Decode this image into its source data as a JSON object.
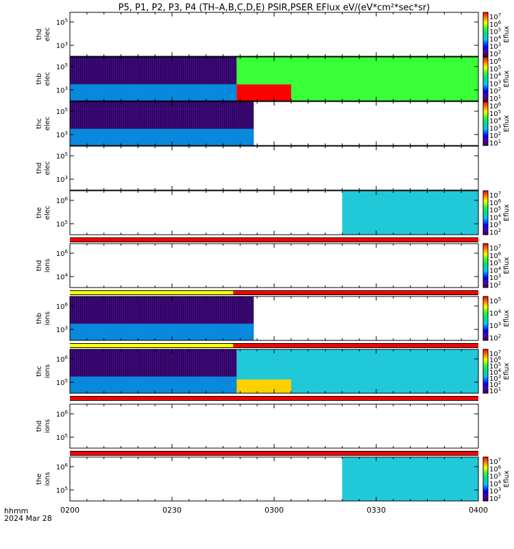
{
  "title": "P5, P1, P2, P3, P4 (TH–A,B,C,D,E) PSIR,PSER EFlux eV/(eV*cm²*sec*sr)",
  "time_label": "hhmm",
  "date_label": "2024 Mar 28",
  "colorbar_label": "Eflux",
  "chart_data": {
    "type": "heatmap",
    "x_ticks": [
      "0200",
      "0230",
      "0300",
      "0330",
      "0400"
    ],
    "xlim": [
      "0200",
      "0400"
    ],
    "y_scale": "log",
    "panels": [
      {
        "probe": "thd",
        "species": "elec",
        "ylabel_1": "thd",
        "ylabel_2": "elec",
        "yticks": [
          {
            "b": "10",
            "e": "5"
          },
          {
            "b": "10",
            "e": "3"
          }
        ],
        "colorbar": {
          "ticks": [
            {
              "b": "10",
              "e": "7"
            },
            {
              "b": "10",
              "e": "6"
            },
            {
              "b": "10",
              "e": "5"
            },
            {
              "b": "10",
              "e": "4"
            },
            {
              "b": "10",
              "e": "3"
            },
            {
              "b": "10",
              "e": "2"
            }
          ]
        },
        "blocks": []
      },
      {
        "probe": "thb",
        "species": "elec",
        "ylabel_1": "thb",
        "ylabel_2": "elec",
        "yticks": [
          {
            "b": "10",
            "e": "5"
          },
          {
            "b": "10",
            "e": "3"
          }
        ],
        "colorbar": {
          "ticks": [
            {
              "b": "10",
              "e": "6"
            },
            {
              "b": "10",
              "e": "5"
            },
            {
              "b": "10",
              "e": "4"
            },
            {
              "b": "10",
              "e": "3"
            },
            {
              "b": "10",
              "e": "2"
            },
            {
              "b": "10",
              "e": "1"
            }
          ]
        },
        "blocks": [
          {
            "t0": "0200",
            "t1": "0249",
            "level": "low-to-mid"
          },
          {
            "t0": "0249",
            "t1": "0400",
            "level": "mid-high"
          },
          {
            "t0": "0249",
            "t1": "0305",
            "level": "max"
          }
        ]
      },
      {
        "probe": "thc",
        "species": "elec",
        "ylabel_1": "thc",
        "ylabel_2": "elec",
        "yticks": [
          {
            "b": "10",
            "e": "5"
          },
          {
            "b": "10",
            "e": "3"
          }
        ],
        "colorbar": {
          "ticks": [
            {
              "b": "10",
              "e": "6"
            },
            {
              "b": "10",
              "e": "5"
            },
            {
              "b": "10",
              "e": "4"
            },
            {
              "b": "10",
              "e": "3"
            },
            {
              "b": "10",
              "e": "2"
            },
            {
              "b": "10",
              "e": "1"
            }
          ]
        },
        "blocks": [
          {
            "t0": "0200",
            "t1": "0254",
            "level": "low-to-mid"
          }
        ]
      },
      {
        "probe": "thd",
        "species": "elec",
        "ylabel_1": "thd",
        "ylabel_2": "elec",
        "yticks": [
          {
            "b": "10",
            "e": "5"
          },
          {
            "b": "10",
            "e": "3"
          }
        ],
        "blocks": []
      },
      {
        "probe": "the",
        "species": "elec",
        "ylabel_1": "the",
        "ylabel_2": "elec",
        "yticks": [
          {
            "b": "10",
            "e": "6"
          },
          {
            "b": "10",
            "e": "5"
          }
        ],
        "colorbar": {
          "ticks": [
            {
              "b": "10",
              "e": "7"
            },
            {
              "b": "10",
              "e": "6"
            },
            {
              "b": "10",
              "e": "5"
            },
            {
              "b": "10",
              "e": "4"
            },
            {
              "b": "10",
              "e": "3"
            },
            {
              "b": "10",
              "e": "2"
            }
          ]
        },
        "blocks": [
          {
            "t0": "0320",
            "t1": "0400",
            "level": "mid"
          }
        ]
      },
      {
        "probe": "thd",
        "species": "ions",
        "ylabel_1": "thd",
        "ylabel_2": "ions",
        "yticks": [
          {
            "b": "10",
            "e": "6"
          },
          {
            "b": "10",
            "e": "4"
          }
        ],
        "colorbar": {
          "ticks": [
            {
              "b": "10",
              "e": "7"
            },
            {
              "b": "10",
              "e": "6"
            },
            {
              "b": "10",
              "e": "5"
            },
            {
              "b": "10",
              "e": "4"
            },
            {
              "b": "10",
              "e": "3"
            },
            {
              "b": "10",
              "e": "2"
            }
          ]
        },
        "blocks": []
      },
      {
        "probe": "thb",
        "species": "ions",
        "ylabel_1": "thb",
        "ylabel_2": "ions",
        "yticks": [
          {
            "b": "10",
            "e": "6"
          },
          {
            "b": "10",
            "e": "3"
          }
        ],
        "colorbar": {
          "ticks": [
            {
              "b": "10",
              "e": "5"
            },
            {
              "b": "10",
              "e": "4"
            },
            {
              "b": "10",
              "e": "3"
            },
            {
              "b": "10",
              "e": "2"
            }
          ]
        },
        "blocks": [
          {
            "t0": "0200",
            "t1": "0254",
            "level": "low"
          }
        ]
      },
      {
        "probe": "thc",
        "species": "ions",
        "ylabel_1": "thc",
        "ylabel_2": "ions",
        "yticks": [
          {
            "b": "10",
            "e": "6"
          },
          {
            "b": "10",
            "e": "5"
          }
        ],
        "colorbar": {
          "ticks": [
            {
              "b": "10",
              "e": "7"
            },
            {
              "b": "10",
              "e": "6"
            },
            {
              "b": "10",
              "e": "5"
            },
            {
              "b": "10",
              "e": "4"
            },
            {
              "b": "10",
              "e": "3"
            },
            {
              "b": "10",
              "e": "2"
            },
            {
              "b": "10",
              "e": "1"
            }
          ]
        },
        "blocks": [
          {
            "t0": "0200",
            "t1": "0249",
            "level": "low"
          },
          {
            "t0": "0249",
            "t1": "0400",
            "level": "mid"
          },
          {
            "t0": "0249",
            "t1": "0305",
            "level": "high"
          }
        ]
      },
      {
        "probe": "thd",
        "species": "ions",
        "ylabel_1": "thd",
        "ylabel_2": "ions",
        "yticks": [
          {
            "b": "10",
            "e": "6"
          },
          {
            "b": "10",
            "e": "5"
          }
        ],
        "blocks": []
      },
      {
        "probe": "the",
        "species": "ions",
        "ylabel_1": "the",
        "ylabel_2": "ions",
        "yticks": [
          {
            "b": "10",
            "e": "6"
          },
          {
            "b": "10",
            "e": "5"
          }
        ],
        "colorbar": {
          "ticks": [
            {
              "b": "10",
              "e": "7"
            },
            {
              "b": "10",
              "e": "6"
            },
            {
              "b": "10",
              "e": "5"
            },
            {
              "b": "10",
              "e": "4"
            },
            {
              "b": "10",
              "e": "3"
            },
            {
              "b": "10",
              "e": "2"
            }
          ]
        },
        "blocks": [
          {
            "t0": "0320",
            "t1": "0400",
            "level": "mid"
          }
        ]
      }
    ],
    "mode_bars": [
      {
        "after_panel": 4,
        "segments": [
          {
            "t0": "0200",
            "t1": "0400",
            "color": "#ff0000"
          }
        ]
      },
      {
        "after_panel": 5,
        "segments": [
          {
            "t0": "0200",
            "t1": "0248",
            "color": "#ffff00"
          },
          {
            "t0": "0248",
            "t1": "0400",
            "color": "#ff0000"
          }
        ]
      },
      {
        "after_panel": 6,
        "segments": [
          {
            "t0": "0200",
            "t1": "0248",
            "color": "#ffff00"
          },
          {
            "t0": "0248",
            "t1": "0400",
            "color": "#ff0000"
          }
        ]
      },
      {
        "after_panel": 7,
        "segments": [
          {
            "t0": "0200",
            "t1": "0400",
            "color": "#ff0000"
          }
        ]
      },
      {
        "after_panel": 8,
        "segments": [
          {
            "t0": "0200",
            "t1": "0400",
            "color": "#ff0000"
          }
        ]
      }
    ]
  }
}
